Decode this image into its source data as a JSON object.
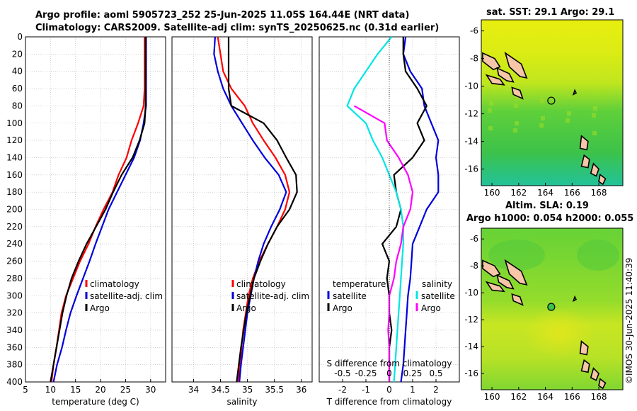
{
  "title": {
    "line1": "Argo profile: aoml 5905723_252 25-Jun-2025 11.05S 164.44E (NRT data)",
    "line2": "Climatology: CARS2009. Satellite-adj clim: synTS_20250625.nc (0.31d earlier)"
  },
  "credit": "©IMOS 30-Jun-2025 11:40:39",
  "colors": {
    "climatology": "#ff0000",
    "satellite": "#0000dd",
    "argo": "#000000",
    "argo_sal_diff": "#ff00ff",
    "sat_sal_diff": "#00e5e5",
    "land": "#f7c6a8",
    "grid": "#bbbbbb"
  },
  "chart_data": [
    {
      "type": "line",
      "name": "temperature-panel",
      "xlabel": "temperature (deg C)",
      "xlim": [
        5,
        33
      ],
      "xticks": [
        5,
        10,
        15,
        20,
        25,
        30
      ],
      "ylim": [
        0,
        400
      ],
      "yticks": [
        0,
        20,
        40,
        60,
        80,
        100,
        120,
        140,
        160,
        180,
        200,
        220,
        240,
        260,
        280,
        300,
        320,
        340,
        360,
        380,
        400
      ],
      "legend": [
        "climatology",
        "satellite-adj. clim",
        "Argo"
      ],
      "series": [
        {
          "name": "climatology",
          "color": "#ff0000",
          "x": [
            28.8,
            28.8,
            28.8,
            28.8,
            28.6,
            27.5,
            26.2,
            25.2,
            23.6,
            22.4,
            20.6,
            19.0,
            17.6,
            15.9,
            14.5,
            13.1,
            12.2,
            11.7,
            11.2,
            10.6,
            10.2
          ],
          "y": [
            0,
            20,
            40,
            60,
            80,
            100,
            120,
            140,
            160,
            180,
            200,
            220,
            240,
            260,
            280,
            300,
            320,
            340,
            360,
            380,
            400
          ]
        },
        {
          "name": "satellite-adj. clim",
          "color": "#0000dd",
          "x": [
            29.1,
            29.1,
            29.1,
            29.1,
            29.1,
            28.6,
            27.9,
            26.7,
            25.0,
            23.3,
            21.6,
            20.3,
            19.0,
            17.8,
            16.5,
            15.2,
            14.0,
            13.1,
            12.3,
            11.3,
            10.6
          ],
          "y": [
            0,
            20,
            40,
            60,
            80,
            100,
            120,
            140,
            160,
            180,
            200,
            220,
            240,
            260,
            280,
            300,
            320,
            340,
            360,
            380,
            400
          ]
        },
        {
          "name": "Argo",
          "color": "#000000",
          "x": [
            29.0,
            29.0,
            29.0,
            29.0,
            29.0,
            28.8,
            27.8,
            26.4,
            24.2,
            22.5,
            21.0,
            19.1,
            17.2,
            15.6,
            14.2,
            13.2,
            12.4,
            11.8,
            11.2,
            10.6,
            10.0
          ],
          "y": [
            0,
            20,
            40,
            60,
            80,
            100,
            120,
            140,
            160,
            180,
            200,
            220,
            240,
            260,
            280,
            300,
            320,
            340,
            360,
            380,
            400
          ]
        }
      ]
    },
    {
      "type": "line",
      "name": "salinity-panel",
      "xlabel": "salinity",
      "xlim": [
        33.6,
        36.2
      ],
      "xticks": [
        34,
        34.5,
        35,
        35.5,
        36
      ],
      "ylim": [
        0,
        400
      ],
      "legend": [
        "climatology",
        "satellite-adj. clim",
        "Argo"
      ],
      "series": [
        {
          "name": "climatology",
          "color": "#ff0000",
          "x": [
            34.45,
            34.5,
            34.55,
            34.7,
            34.95,
            35.1,
            35.3,
            35.52,
            35.7,
            35.78,
            35.7,
            35.55,
            35.38,
            35.22,
            35.1,
            35.02,
            34.97,
            34.92,
            34.89,
            34.86,
            34.83
          ],
          "y": [
            0,
            20,
            40,
            60,
            80,
            100,
            120,
            140,
            160,
            180,
            200,
            220,
            240,
            260,
            280,
            300,
            320,
            340,
            360,
            380,
            400
          ]
        },
        {
          "name": "satellite-adj. clim",
          "color": "#0000dd",
          "x": [
            34.4,
            34.38,
            34.45,
            34.55,
            34.7,
            34.9,
            35.1,
            35.32,
            35.58,
            35.72,
            35.6,
            35.44,
            35.3,
            35.2,
            35.12,
            35.06,
            35.0,
            34.96,
            34.92,
            34.88,
            34.85
          ],
          "y": [
            0,
            20,
            40,
            60,
            80,
            100,
            120,
            140,
            160,
            180,
            200,
            220,
            240,
            260,
            280,
            300,
            320,
            340,
            360,
            380,
            400
          ]
        },
        {
          "name": "Argo",
          "color": "#000000",
          "x": [
            34.65,
            34.65,
            34.65,
            34.65,
            34.7,
            35.3,
            35.55,
            35.72,
            35.9,
            35.92,
            35.78,
            35.55,
            35.38,
            35.24,
            35.12,
            35.05,
            34.98,
            34.93,
            34.88,
            34.84,
            34.8
          ],
          "y": [
            0,
            20,
            40,
            60,
            80,
            100,
            120,
            140,
            160,
            180,
            200,
            220,
            240,
            260,
            280,
            300,
            320,
            340,
            360,
            380,
            400
          ]
        }
      ]
    },
    {
      "type": "line",
      "name": "difference-panel",
      "xlabel": "T difference from climatology",
      "xlabel_top": "S difference from climatology",
      "xlim": [
        -3,
        3
      ],
      "xticks": [
        -2,
        -1,
        0,
        1,
        2
      ],
      "top_ticks": [
        "-0.5",
        "-0.25",
        "0",
        "0.25",
        "0.5"
      ],
      "ylim": [
        0,
        400
      ],
      "legend": {
        "temperature_title": "temperature",
        "salinity_title": "salinity",
        "items": [
          "satellite",
          "Argo",
          "satellite",
          "Argo"
        ]
      },
      "series": [
        {
          "name": "temperature satellite",
          "color": "#0000dd",
          "x": [
            0.7,
            0.6,
            0.9,
            1.4,
            1.5,
            1.8,
            2.1,
            2.0,
            2.1,
            2.1,
            1.6,
            1.3,
            1.0,
            0.95,
            0.9,
            0.8,
            0.75,
            0.7,
            0.65,
            0.6,
            0.5
          ],
          "y": [
            0,
            20,
            40,
            60,
            80,
            100,
            120,
            140,
            160,
            180,
            200,
            220,
            240,
            260,
            280,
            300,
            320,
            340,
            360,
            380,
            400
          ]
        },
        {
          "name": "temperature Argo",
          "color": "#000000",
          "x": [
            0.6,
            0.6,
            0.7,
            1.2,
            1.6,
            1.2,
            1.5,
            1.0,
            0.2,
            0.3,
            0.5,
            0.3,
            -0.3,
            0.0,
            -0.1,
            0.0,
            0.0,
            0.1,
            0.0,
            0.0,
            0.0
          ],
          "y": [
            0,
            20,
            40,
            60,
            80,
            100,
            120,
            140,
            160,
            180,
            200,
            220,
            240,
            260,
            280,
            300,
            320,
            340,
            360,
            380,
            400
          ]
        },
        {
          "name": "salinity satellite",
          "color": "#00e5e5",
          "x": [
            0.1,
            -0.5,
            -1.0,
            -1.5,
            -1.8,
            -1.0,
            -0.7,
            -0.3,
            0.0,
            0.3,
            0.5,
            0.6,
            0.6,
            0.55,
            0.5,
            0.45,
            0.4,
            0.35,
            0.3,
            0.25,
            0.2
          ],
          "y": [
            0,
            20,
            40,
            60,
            80,
            100,
            120,
            140,
            160,
            180,
            200,
            220,
            240,
            260,
            280,
            300,
            320,
            340,
            360,
            380,
            400
          ]
        },
        {
          "name": "salinity Argo",
          "color": "#ff00ff",
          "x": [
            null,
            null,
            null,
            null,
            -1.5,
            -0.2,
            -0.1,
            0.4,
            0.8,
            1.0,
            0.9,
            0.6,
            0.5,
            0.3,
            0.2,
            0.0,
            0.0,
            -0.05,
            0.0,
            0.0,
            0.0
          ],
          "y": [
            0,
            20,
            40,
            60,
            80,
            100,
            120,
            140,
            160,
            180,
            200,
            220,
            240,
            260,
            280,
            300,
            320,
            340,
            360,
            380,
            400
          ]
        }
      ]
    },
    {
      "type": "heatmap",
      "name": "sst-map",
      "title": "sat. SST: 29.1 Argo: 29.1",
      "xticks": [
        160,
        162,
        164,
        166,
        168
      ],
      "yticks": [
        -6,
        -8,
        -10,
        -12,
        -14,
        -16
      ],
      "xlim": [
        159.2,
        169.8
      ],
      "ylim": [
        -17.2,
        -5.2
      ],
      "marker": {
        "lon": 164.44,
        "lat": -11.05
      }
    },
    {
      "type": "heatmap",
      "name": "sla-map",
      "title": "Altim. SLA: 0.19",
      "subtitle": "Argo h1000: 0.054 h2000: 0.055",
      "xticks": [
        160,
        162,
        164,
        166,
        168
      ],
      "yticks": [
        -6,
        -8,
        -10,
        -12,
        -14,
        -16
      ],
      "xlim": [
        159.2,
        169.8
      ],
      "ylim": [
        -17.2,
        -5.2
      ],
      "marker": {
        "lon": 164.44,
        "lat": -11.05
      }
    }
  ]
}
